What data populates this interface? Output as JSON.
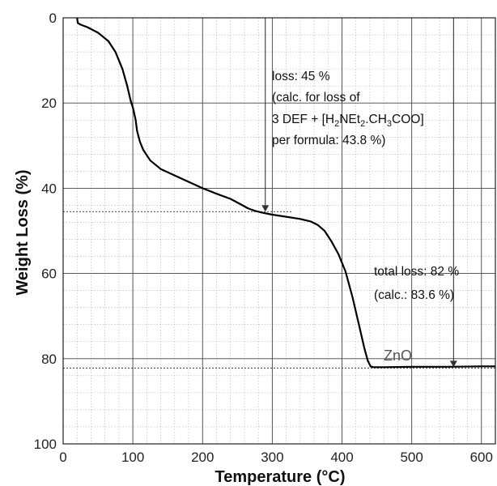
{
  "chart_data": {
    "type": "line",
    "xlabel": "Temperature (°C)",
    "ylabel": "Weight Loss (%)",
    "xlim": [
      0,
      620
    ],
    "ylim": [
      0,
      100
    ],
    "y_inverted": true,
    "x_ticks": [
      0,
      100,
      200,
      300,
      400,
      500,
      600
    ],
    "y_ticks": [
      0,
      20,
      40,
      60,
      80,
      100
    ],
    "grid": true,
    "series": [
      {
        "x": [
          20,
          21,
          25,
          35,
          50,
          65,
          75,
          85,
          92,
          97,
          100,
          102,
          104,
          106,
          110,
          115,
          125,
          140,
          160,
          180,
          200,
          220,
          240,
          255,
          265,
          275,
          285,
          300,
          320,
          340,
          355,
          365,
          375,
          385,
          395,
          405,
          415,
          425,
          432,
          437,
          441,
          445,
          460,
          500,
          550,
          600,
          620
        ],
        "y": [
          0,
          1.2,
          1.6,
          2.2,
          3.5,
          5.5,
          8,
          12,
          16,
          19.5,
          21,
          22.5,
          24,
          26.5,
          29,
          31,
          33.5,
          35.5,
          37,
          38.5,
          40,
          41.3,
          42.5,
          43.8,
          44.7,
          45.3,
          45.7,
          46.2,
          46.7,
          47.2,
          47.8,
          48.6,
          50,
          52.5,
          55.5,
          59.5,
          65.5,
          72.5,
          77.5,
          80.5,
          81.8,
          82,
          82,
          81.9,
          81.9,
          81.8,
          81.8
        ]
      }
    ],
    "reference_lines": [
      {
        "y": 45.5,
        "x_from": 0,
        "x_to": 330
      },
      {
        "y": 82.2,
        "x_from": 0,
        "x_to": 620
      }
    ],
    "arrows": [
      {
        "x": 290,
        "y_from": 0,
        "y_to": 45.5
      },
      {
        "x": 560,
        "y_from": 0,
        "y_to": 82
      }
    ],
    "annotations": {
      "loss_line1": "loss: 45 %",
      "loss_line2": "(calc. for loss of",
      "loss_line3_a": "3 DEF + [H",
      "loss_line3_sub1": "2",
      "loss_line3_b": "NEt",
      "loss_line3_sub2": "2",
      "loss_line3_c": ".CH",
      "loss_line3_sub3": "3",
      "loss_line3_d": "COO]",
      "loss_line4": "per formula: 43.8 %)",
      "total_line1": "total loss: 82 %",
      "total_line2": "(calc.: 83.6 %)",
      "residue_label": "ZnO"
    }
  }
}
